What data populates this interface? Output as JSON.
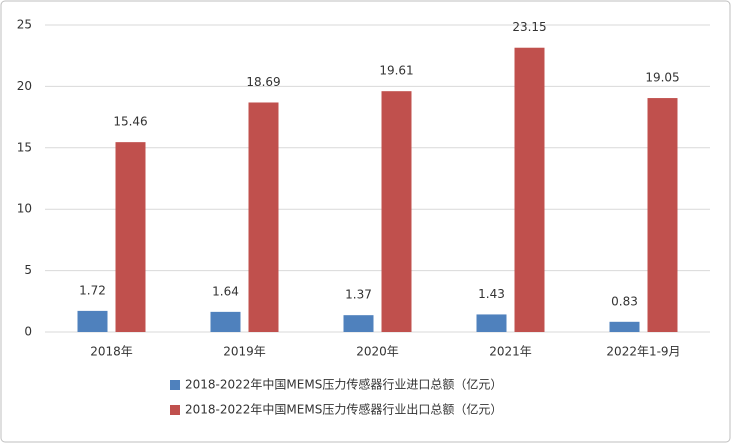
{
  "chart_data": {
    "type": "bar",
    "categories": [
      "2018年",
      "2019年",
      "2020年",
      "2021年",
      "2022年1-9月"
    ],
    "series": [
      {
        "name": "2018-2022年中国MEMS压力传感器行业进口总额（亿元）",
        "color": "#4f81bd",
        "values": [
          1.72,
          1.64,
          1.37,
          1.43,
          0.83
        ]
      },
      {
        "name": "2018-2022年中国MEMS压力传感器行业出口总额（亿元）",
        "color": "#c0504d",
        "values": [
          15.46,
          18.69,
          19.61,
          23.15,
          19.05
        ]
      }
    ],
    "ylim": [
      0,
      25
    ],
    "yticks": [
      0,
      5,
      10,
      15,
      20,
      25
    ],
    "grid": true,
    "legend": "bottom"
  }
}
